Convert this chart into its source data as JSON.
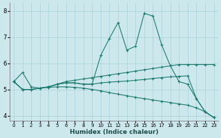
{
  "xlabel": "Humidex (Indice chaleur)",
  "bg_color": "#cce8ed",
  "grid_color": "#a8d0d8",
  "line_color": "#1a7a6e",
  "xlim": [
    -0.5,
    23.5
  ],
  "ylim": [
    3.8,
    8.3
  ],
  "xticks": [
    0,
    1,
    2,
    3,
    4,
    5,
    6,
    7,
    8,
    9,
    10,
    11,
    12,
    13,
    14,
    15,
    16,
    17,
    18,
    19,
    20,
    21,
    22,
    23
  ],
  "yticks": [
    4,
    5,
    6,
    7,
    8
  ],
  "series": [
    {
      "x": [
        0,
        1,
        2,
        3,
        4,
        5,
        6,
        7,
        8,
        9,
        10,
        11,
        12,
        13,
        14,
        15,
        16,
        17,
        18,
        19,
        20,
        21,
        22,
        23
      ],
      "y": [
        5.3,
        5.65,
        5.1,
        5.05,
        5.1,
        5.2,
        5.3,
        5.35,
        5.4,
        5.45,
        5.5,
        5.55,
        5.6,
        5.65,
        5.7,
        5.75,
        5.8,
        5.85,
        5.9,
        5.95,
        5.95,
        5.95,
        5.95,
        5.95
      ]
    },
    {
      "x": [
        0,
        1,
        2,
        3,
        4,
        5,
        6,
        7,
        8,
        9,
        10,
        11,
        12,
        13,
        14,
        15,
        16,
        17,
        18,
        19,
        20,
        21,
        22,
        23
      ],
      "y": [
        5.3,
        5.0,
        5.0,
        5.05,
        5.1,
        5.2,
        5.25,
        5.25,
        5.2,
        5.2,
        6.3,
        6.95,
        7.55,
        6.5,
        6.65,
        7.9,
        7.8,
        6.7,
        5.9,
        5.3,
        5.2,
        4.65,
        4.15,
        3.93
      ]
    },
    {
      "x": [
        0,
        1,
        2,
        3,
        4,
        5,
        6,
        7,
        8,
        9,
        10,
        11,
        12,
        13,
        14,
        15,
        16,
        17,
        18,
        19,
        20,
        21,
        22,
        23
      ],
      "y": [
        5.3,
        5.0,
        5.0,
        5.05,
        5.1,
        5.2,
        5.25,
        5.25,
        5.2,
        5.2,
        5.25,
        5.28,
        5.3,
        5.32,
        5.35,
        5.38,
        5.42,
        5.45,
        5.48,
        5.5,
        5.52,
        4.65,
        4.15,
        3.93
      ]
    },
    {
      "x": [
        0,
        1,
        2,
        3,
        4,
        5,
        6,
        7,
        8,
        9,
        10,
        11,
        12,
        13,
        14,
        15,
        16,
        17,
        18,
        19,
        20,
        21,
        22,
        23
      ],
      "y": [
        5.3,
        5.0,
        5.0,
        5.05,
        5.08,
        5.1,
        5.1,
        5.08,
        5.05,
        5.0,
        4.95,
        4.88,
        4.82,
        4.76,
        4.7,
        4.65,
        4.6,
        4.55,
        4.5,
        4.45,
        4.4,
        4.3,
        4.15,
        3.93
      ]
    }
  ]
}
